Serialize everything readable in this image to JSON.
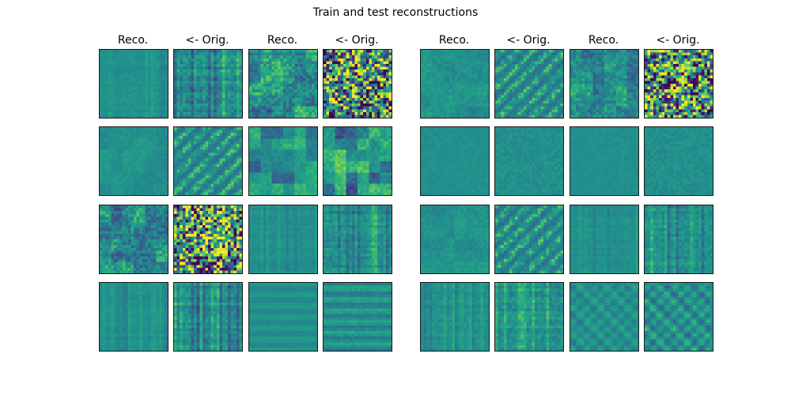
{
  "chart_data": {
    "type": "heatmap",
    "title": "Train and test reconstructions",
    "colormap": "viridis",
    "colors": {
      "dark": "#440154",
      "mid": "#21908d",
      "bright": "#fde725"
    },
    "column_labels": [
      "Reco.",
      "<- Orig.",
      "Reco.",
      "<- Orig.",
      "Reco.",
      "<- Orig.",
      "Reco.",
      "<- Orig."
    ],
    "grid": {
      "rows": 4,
      "cols": 8
    },
    "tiles": [
      [
        {
          "pattern": "grid",
          "contrast": 0.15,
          "seed": 1
        },
        {
          "pattern": "grid",
          "contrast": 0.45,
          "seed": 2
        },
        {
          "pattern": "blobs",
          "contrast": 0.55,
          "seed": 3
        },
        {
          "pattern": "noise",
          "contrast": 1.0,
          "seed": 4
        },
        {
          "pattern": "blobs",
          "contrast": 0.2,
          "seed": 5
        },
        {
          "pattern": "diagonal",
          "contrast": 0.5,
          "seed": 6
        },
        {
          "pattern": "blobs",
          "contrast": 0.45,
          "seed": 7
        },
        {
          "pattern": "noise",
          "contrast": 1.0,
          "seed": 8
        }
      ],
      [
        {
          "pattern": "blobs",
          "contrast": 0.15,
          "seed": 9
        },
        {
          "pattern": "diagonal",
          "contrast": 0.5,
          "seed": 10
        },
        {
          "pattern": "smooth",
          "contrast": 0.55,
          "seed": 11
        },
        {
          "pattern": "smooth",
          "contrast": 0.75,
          "seed": 12
        },
        {
          "pattern": "flat",
          "contrast": 0.06,
          "seed": 13
        },
        {
          "pattern": "flat",
          "contrast": 0.1,
          "seed": 14
        },
        {
          "pattern": "flat",
          "contrast": 0.06,
          "seed": 15
        },
        {
          "pattern": "flat",
          "contrast": 0.1,
          "seed": 16
        }
      ],
      [
        {
          "pattern": "blobs",
          "contrast": 0.55,
          "seed": 17
        },
        {
          "pattern": "noise",
          "contrast": 1.0,
          "seed": 18
        },
        {
          "pattern": "grid",
          "contrast": 0.15,
          "seed": 19
        },
        {
          "pattern": "grid",
          "contrast": 0.35,
          "seed": 20
        },
        {
          "pattern": "blobs",
          "contrast": 0.18,
          "seed": 21
        },
        {
          "pattern": "diagonal",
          "contrast": 0.5,
          "seed": 22
        },
        {
          "pattern": "grid",
          "contrast": 0.15,
          "seed": 23
        },
        {
          "pattern": "grid",
          "contrast": 0.35,
          "seed": 24
        }
      ],
      [
        {
          "pattern": "grid",
          "contrast": 0.15,
          "seed": 25
        },
        {
          "pattern": "grid",
          "contrast": 0.4,
          "seed": 26
        },
        {
          "pattern": "stripes",
          "contrast": 0.12,
          "seed": 27
        },
        {
          "pattern": "stripes",
          "contrast": 0.25,
          "seed": 28
        },
        {
          "pattern": "grid",
          "contrast": 0.2,
          "seed": 29
        },
        {
          "pattern": "grid",
          "contrast": 0.4,
          "seed": 30
        },
        {
          "pattern": "dots",
          "contrast": 0.2,
          "seed": 31
        },
        {
          "pattern": "dots",
          "contrast": 0.3,
          "seed": 32
        }
      ]
    ]
  }
}
